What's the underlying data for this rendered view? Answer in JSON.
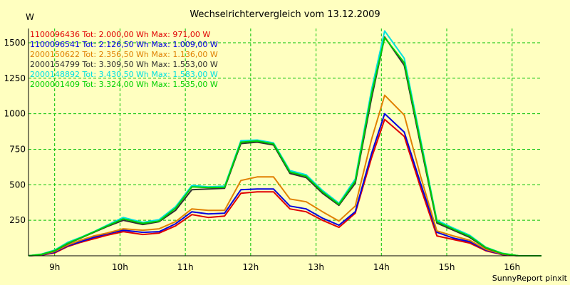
{
  "chart_data": {
    "type": "line",
    "title": "Wechselrichtervergleich vom 13.12.2009",
    "ylabel": "W",
    "xlabel": "",
    "footer": "SunnyReport pinxit",
    "ylim": [
      0,
      1600
    ],
    "xlim": [
      8.6,
      16.45
    ],
    "grid": true,
    "legend_position": "top-left",
    "y_ticks": [
      {
        "value": 250,
        "label": "250"
      },
      {
        "value": 500,
        "label": "500"
      },
      {
        "value": 750,
        "label": "750"
      },
      {
        "value": 1000,
        "label": "1000"
      },
      {
        "value": 1250,
        "label": "1250"
      },
      {
        "value": 1500,
        "label": "1500"
      }
    ],
    "x_ticks": [
      {
        "value": 9,
        "label": "9h"
      },
      {
        "value": 10,
        "label": "10h"
      },
      {
        "value": 11,
        "label": "11h"
      },
      {
        "value": 12,
        "label": "12h"
      },
      {
        "value": 13,
        "label": "13h"
      },
      {
        "value": 14,
        "label": "14h"
      },
      {
        "value": 15,
        "label": "15h"
      },
      {
        "value": 16,
        "label": "16h"
      }
    ],
    "x": [
      8.6,
      8.8,
      9.0,
      9.2,
      9.4,
      9.6,
      9.8,
      10.05,
      10.35,
      10.6,
      10.85,
      11.1,
      11.35,
      11.6,
      11.85,
      12.1,
      12.35,
      12.6,
      12.85,
      13.1,
      13.35,
      13.6,
      13.85,
      14.05,
      14.35,
      14.6,
      14.85,
      15.1,
      15.35,
      15.6,
      15.85,
      16.1,
      16.45
    ],
    "series": [
      {
        "name": "1100096436",
        "legend": "1100096436 Tot: 2.000,00 Wh Max: 971,00 W",
        "color": "#e00000",
        "values": [
          0,
          5,
          20,
          65,
          95,
          120,
          145,
          170,
          150,
          160,
          210,
          290,
          270,
          280,
          440,
          450,
          450,
          330,
          310,
          250,
          200,
          300,
          690,
          960,
          840,
          480,
          140,
          115,
          90,
          35,
          8,
          0,
          0
        ]
      },
      {
        "name": "1100096541",
        "legend": "1100096541 Tot: 2.126,50 Wh Max: 1.009,00 W",
        "color": "#0000e0",
        "values": [
          0,
          6,
          25,
          70,
          100,
          130,
          155,
          180,
          165,
          170,
          225,
          310,
          295,
          300,
          465,
          470,
          470,
          350,
          330,
          265,
          215,
          310,
          720,
          1000,
          870,
          510,
          165,
          125,
          100,
          40,
          10,
          0,
          0
        ]
      },
      {
        "name": "2000150622",
        "legend": "2000150622 Tot: 2.356,50 Wh Max: 1.136,00 W",
        "color": "#e08000",
        "values": [
          0,
          8,
          30,
          75,
          110,
          140,
          160,
          190,
          180,
          190,
          240,
          330,
          320,
          320,
          530,
          555,
          555,
          400,
          380,
          310,
          245,
          350,
          820,
          1130,
          990,
          560,
          175,
          140,
          110,
          45,
          12,
          0,
          0
        ]
      },
      {
        "name": "2000154799",
        "legend": "2000154799 Tot: 3.309,50 Wh Max: 1.553,00 W",
        "color": "#303030",
        "values": [
          0,
          10,
          35,
          85,
          125,
          165,
          205,
          250,
          220,
          240,
          320,
          465,
          470,
          475,
          790,
          800,
          780,
          580,
          550,
          440,
          355,
          510,
          1110,
          1540,
          1340,
          780,
          230,
          180,
          130,
          55,
          15,
          0,
          0
        ]
      },
      {
        "name": "2000148892",
        "legend": "2000148892 Tot: 3.430,50 Wh Max: 1.583,00 W",
        "color": "#00e0e0",
        "values": [
          0,
          12,
          40,
          95,
          130,
          170,
          215,
          270,
          235,
          255,
          345,
          495,
          485,
          490,
          810,
          815,
          795,
          600,
          570,
          460,
          370,
          540,
          1170,
          1583,
          1390,
          820,
          250,
          195,
          145,
          60,
          18,
          0,
          0
        ]
      },
      {
        "name": "2000001409",
        "legend": "2000001409 Tot: 3.324,00 Wh Max: 1.535,00 W",
        "color": "#00d000",
        "values": [
          0,
          10,
          36,
          88,
          127,
          168,
          210,
          260,
          228,
          245,
          335,
          485,
          480,
          482,
          800,
          808,
          788,
          590,
          560,
          450,
          362,
          525,
          1140,
          1535,
          1360,
          800,
          240,
          188,
          138,
          57,
          16,
          0,
          0
        ]
      }
    ]
  }
}
